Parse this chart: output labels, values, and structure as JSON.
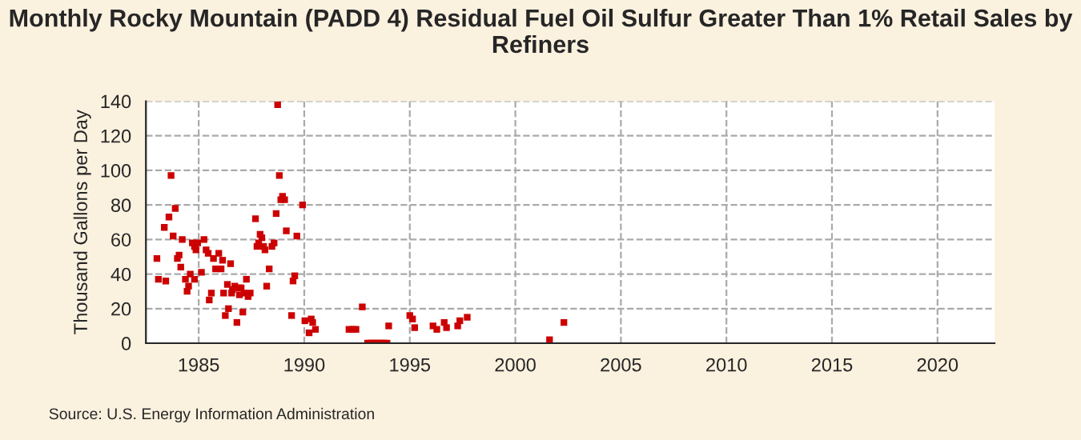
{
  "chart_data": {
    "type": "scatter",
    "title": "Monthly Rocky Mountain (PADD 4) Residual Fuel Oil Sulfur Greater Than 1% Retail Sales by Refiners",
    "ylabel": "Thousand Gallons per Day",
    "annotations": [
      "Source: U.S. Energy Information Administration"
    ],
    "x": [
      1983.02,
      1983.09,
      1983.44,
      1983.37,
      1983.59,
      1983.69,
      1983.79,
      1983.89,
      1983.99,
      1984.07,
      1984.15,
      1984.22,
      1984.37,
      1984.45,
      1984.52,
      1984.6,
      1984.7,
      1984.8,
      1984.87,
      1984.8,
      1984.95,
      1985.13,
      1985.25,
      1985.35,
      1985.45,
      1985.5,
      1985.6,
      1985.7,
      1985.8,
      1985.95,
      1986.06,
      1986.13,
      1986.18,
      1986.26,
      1986.36,
      1986.41,
      1986.51,
      1986.56,
      1986.6,
      1986.71,
      1986.81,
      1986.9,
      1986.93,
      1987.01,
      1987.09,
      1987.16,
      1987.26,
      1987.34,
      1987.44,
      1987.69,
      1987.76,
      1987.84,
      1987.91,
      1987.99,
      1988.07,
      1988.14,
      1988.22,
      1988.34,
      1988.47,
      1988.57,
      1988.67,
      1988.74,
      1988.82,
      1988.89,
      1988.97,
      1989.07,
      1989.15,
      1989.4,
      1989.47,
      1989.55,
      1989.65,
      1989.92,
      1990.03,
      1990.23,
      1990.33,
      1990.4,
      1990.53,
      1992.12,
      1992.3,
      1992.45,
      1992.75,
      1993.0,
      1993.08,
      1993.17,
      1993.25,
      1993.33,
      1993.42,
      1993.5,
      1993.58,
      1993.67,
      1993.75,
      1993.83,
      1993.92,
      1994.0,
      1995.0,
      1995.13,
      1995.23,
      1996.1,
      1996.28,
      1996.63,
      1996.74,
      1997.27,
      1997.37,
      1997.72,
      2001.62,
      2002.3
    ],
    "values": [
      49,
      37,
      36,
      67,
      73,
      97,
      62,
      78,
      49,
      51,
      44,
      60,
      37,
      30,
      33,
      40,
      58,
      56,
      54,
      37,
      58,
      41,
      60,
      54,
      52,
      25,
      29,
      49,
      43,
      52,
      43,
      48,
      29,
      16,
      34,
      20,
      46,
      29,
      31,
      33,
      12,
      32,
      28,
      32,
      18,
      29,
      37,
      27,
      29,
      72,
      56,
      58,
      63,
      61,
      56,
      54,
      33,
      43,
      56,
      58,
      75,
      138,
      97,
      83,
      85,
      83,
      65,
      16,
      36,
      39,
      62,
      80,
      13,
      6,
      14,
      12,
      8,
      8,
      8,
      8,
      21,
      0,
      0,
      0,
      0,
      0,
      0,
      0,
      0,
      0,
      0,
      0,
      0,
      10,
      16,
      14,
      9,
      10,
      8,
      12,
      9,
      10,
      13,
      15,
      2,
      12
    ],
    "color": "#cc0000",
    "marker": "square",
    "xlim": [
      1982.5,
      2022.7
    ],
    "ylim": [
      0,
      140
    ],
    "xticks": [
      1985,
      1990,
      1995,
      2000,
      2005,
      2010,
      2015,
      2020
    ],
    "yticks": [
      0,
      20,
      40,
      60,
      80,
      100,
      120,
      140
    ],
    "grid": true
  }
}
